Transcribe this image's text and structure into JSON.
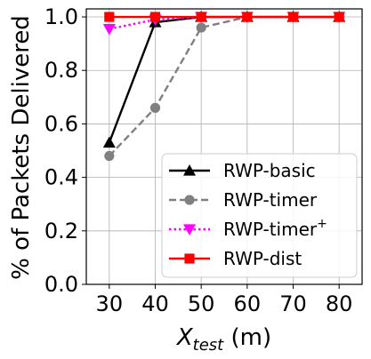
{
  "chart_data": {
    "type": "line",
    "x": [
      30,
      40,
      50,
      60,
      70,
      80
    ],
    "xticks": [
      "30",
      "40",
      "50",
      "60",
      "70",
      "80"
    ],
    "yticks": [
      "0.0",
      "0.2",
      "0.4",
      "0.6",
      "0.8",
      "1.0"
    ],
    "xlim": [
      25,
      85
    ],
    "ylim": [
      0,
      1.03
    ],
    "xlabel": {
      "main": "X",
      "sub": "test",
      "unit": " (m)"
    },
    "ylabel": "% of Packets Delivered",
    "grid": true,
    "legend_position": "bottom-right",
    "series": [
      {
        "name": "RWP-basic",
        "values": [
          0.53,
          0.98,
          1.0,
          1.0,
          1.0,
          1.0
        ],
        "color": "#000000",
        "dash": "solid",
        "marker": "triangle-up"
      },
      {
        "name": "RWP-timer",
        "values": [
          0.48,
          0.66,
          0.96,
          1.0,
          1.0,
          1.0
        ],
        "color": "#808080",
        "dash": "dashed",
        "marker": "circle"
      },
      {
        "name": "RWP-timer",
        "name_sup": "+",
        "values": [
          0.955,
          0.99,
          1.0,
          1.0,
          1.0,
          1.0
        ],
        "color": "#ff00ff",
        "dash": "dotted",
        "marker": "triangle-down"
      },
      {
        "name": "RWP-dist",
        "values": [
          1.0,
          1.0,
          1.0,
          1.0,
          1.0,
          1.0
        ],
        "color": "#ff0000",
        "dash": "solid",
        "marker": "square"
      }
    ]
  }
}
